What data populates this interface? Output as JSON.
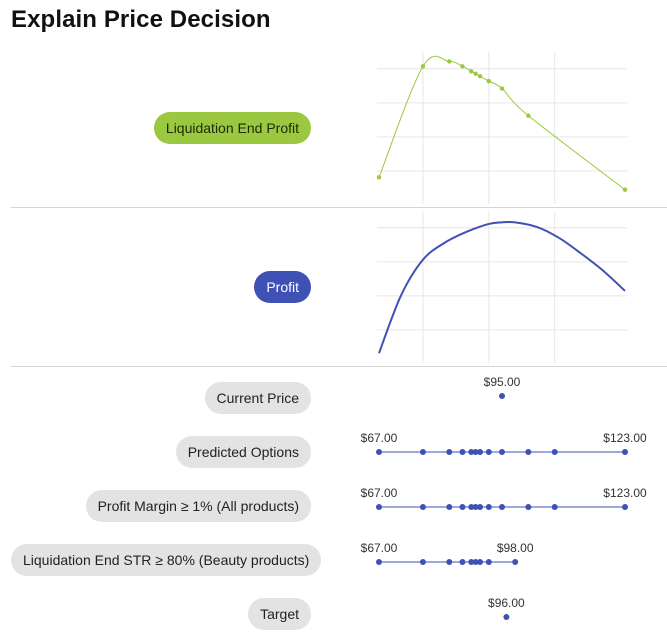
{
  "page": {
    "title": "Explain Price Decision"
  },
  "colors": {
    "green": "#9bc841",
    "blue": "#3f51b5",
    "grid": "#e6e6e6",
    "pill_gray": "#e3e3e3"
  },
  "charts": {
    "liquidation": {
      "label": "Liquidation End Profit",
      "x": [
        67,
        77,
        83,
        86,
        88,
        89,
        90,
        92,
        95,
        101,
        123
      ],
      "y": [
        0.46,
        0.91,
        0.93,
        0.91,
        0.89,
        0.88,
        0.87,
        0.85,
        0.82,
        0.71,
        0.41
      ],
      "ylim": [
        0.36,
        0.96
      ]
    },
    "profit": {
      "label": "Profit",
      "x": [
        67,
        72,
        77,
        82,
        87,
        92,
        95,
        98,
        103,
        108,
        113,
        118,
        123
      ],
      "y": [
        0.15,
        0.52,
        0.75,
        0.86,
        0.93,
        0.98,
        0.99,
        0.99,
        0.96,
        0.89,
        0.79,
        0.68,
        0.55
      ],
      "ylim": [
        0.1,
        1.05
      ]
    }
  },
  "rows": {
    "current_price": {
      "label": "Current Price",
      "value_label": "$95.00",
      "points": [
        95
      ]
    },
    "predicted_options": {
      "label": "Predicted Options",
      "min_label": "$67.00",
      "max_label": "$123.00",
      "points": [
        67,
        77,
        83,
        86,
        88,
        89,
        90,
        92,
        95,
        101,
        107,
        123
      ]
    },
    "profit_margin": {
      "label": "Profit Margin ≥ 1% (All products)",
      "min_label": "$67.00",
      "max_label": "$123.00",
      "points": [
        67,
        77,
        83,
        86,
        88,
        89,
        90,
        92,
        95,
        101,
        107,
        123
      ]
    },
    "liquidation_str": {
      "label": "Liquidation End STR ≥ 80% (Beauty products)",
      "min_label": "$67.00",
      "max_label": "$98.00",
      "points": [
        67,
        77,
        83,
        86,
        88,
        89,
        90,
        92,
        98
      ]
    },
    "target": {
      "label": "Target",
      "value_label": "$96.00",
      "points": [
        96
      ]
    }
  }
}
